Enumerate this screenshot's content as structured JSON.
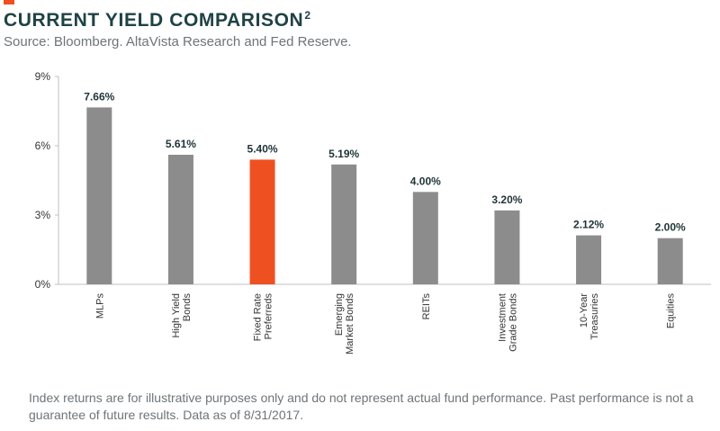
{
  "header": {
    "title": "CURRENT YIELD COMPARISON",
    "title_sup": "2",
    "subtitle": "Source: Bloomberg. AltaVista Research and Fed Reserve."
  },
  "footnote": "Index returns are for illustrative purposes only and do not represent actual fund performance. Past performance is not a guarantee of future results. Data as of 8/31/2017.",
  "colors": {
    "accent": "#ef5022",
    "bar_default": "#8c8c8c",
    "bar_highlight": "#ef5022",
    "title": "#1f4246"
  },
  "chart_data": {
    "type": "bar",
    "title": "CURRENT YIELD COMPARISON",
    "xlabel": "",
    "ylabel": "",
    "ylim": [
      0,
      9
    ],
    "yticks": [
      0,
      3,
      6,
      9
    ],
    "ytick_labels": [
      "0%",
      "3%",
      "6%",
      "9%"
    ],
    "categories": [
      [
        "MLPs"
      ],
      [
        "High Yield",
        "Bonds"
      ],
      [
        "Fixed Rate",
        "Preferreds"
      ],
      [
        "Emerging",
        "Market Bonds"
      ],
      [
        "REITs"
      ],
      [
        "Investment",
        "Grade Bonds"
      ],
      [
        "10-Year",
        "Treasuries"
      ],
      [
        "Equities"
      ]
    ],
    "values": [
      7.66,
      5.61,
      5.4,
      5.19,
      4.0,
      3.2,
      2.12,
      2.0
    ],
    "data_labels": [
      "7.66%",
      "5.61%",
      "5.40%",
      "5.19%",
      "4.00%",
      "3.20%",
      "2.12%",
      "2.00%"
    ],
    "highlight_index": 2,
    "grid": false
  }
}
